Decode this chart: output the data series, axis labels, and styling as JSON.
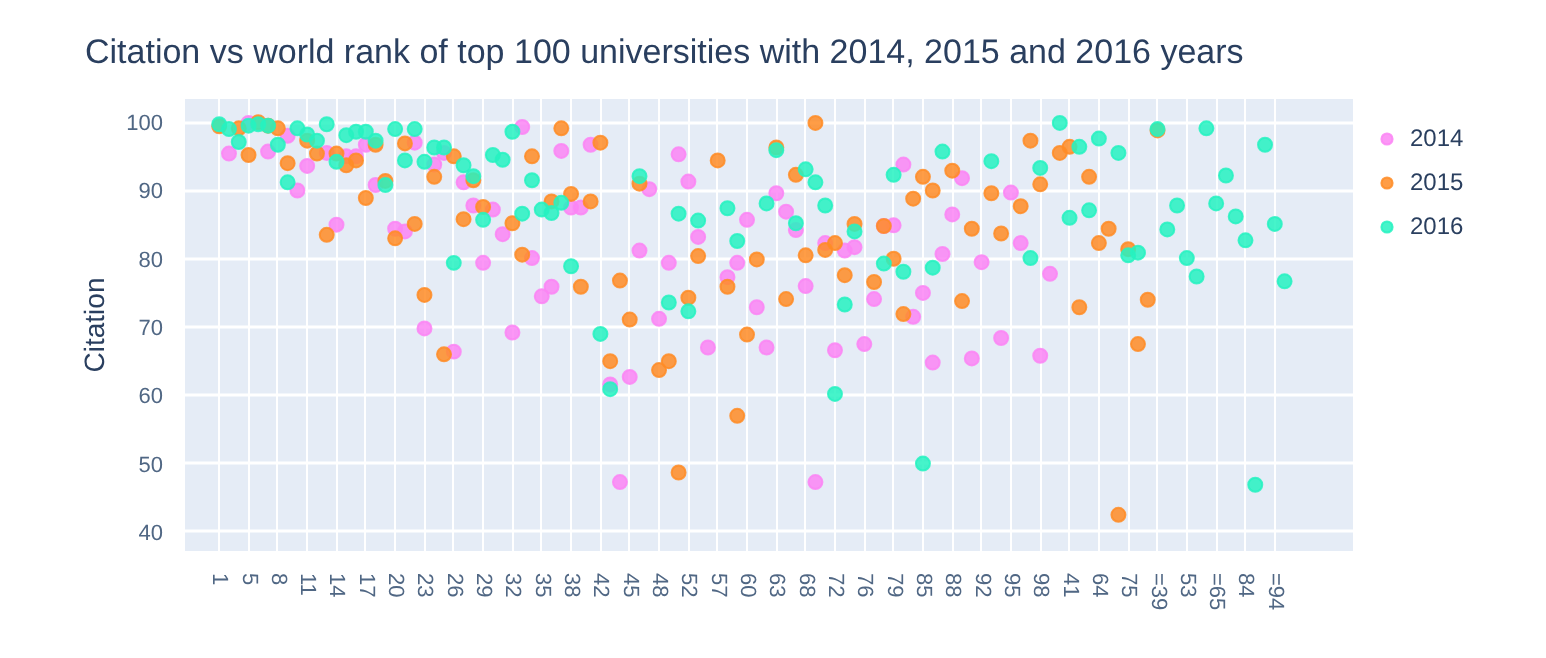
{
  "chart_data": {
    "type": "scatter",
    "title": "Citation vs world rank of top 100 universities with 2014, 2015 and 2016 years",
    "ylabel": "Citation",
    "categories": [
      "1",
      null,
      null,
      "5",
      null,
      null,
      "8",
      null,
      null,
      "11",
      null,
      null,
      "14",
      null,
      null,
      "17",
      null,
      null,
      "20",
      null,
      null,
      "23",
      null,
      null,
      "26",
      null,
      null,
      "29",
      null,
      null,
      "32",
      null,
      null,
      "35",
      null,
      null,
      "38",
      null,
      null,
      "42",
      null,
      null,
      "45",
      null,
      null,
      "48",
      null,
      null,
      "52",
      null,
      null,
      "57",
      null,
      null,
      "60",
      null,
      null,
      "63",
      null,
      null,
      "68",
      null,
      null,
      "72",
      null,
      null,
      "76",
      null,
      null,
      "79",
      null,
      null,
      "85",
      null,
      null,
      "88",
      null,
      null,
      "92",
      null,
      null,
      "95",
      null,
      null,
      "98",
      null,
      null,
      "41",
      null,
      null,
      "64",
      null,
      null,
      "75",
      null,
      null,
      "=39",
      null,
      null,
      "53",
      null,
      null,
      "=65",
      null,
      null,
      "84",
      null,
      null,
      "=94",
      null
    ],
    "series": [
      {
        "name": "2014",
        "color": "#fb85f4",
        "values": [
          null,
          95.4,
          null,
          99.9,
          null,
          95.7,
          null,
          98,
          90,
          93.6,
          null,
          95.5,
          85,
          95,
          95,
          96.7,
          90.8,
          null,
          84.4,
          84,
          97,
          69.8,
          93.8,
          95.5,
          66.4,
          91.2,
          87.8,
          79.4,
          87.2,
          83.6,
          69.2,
          99.3,
          80.1,
          74.5,
          75.9,
          95.8,
          87.5,
          87.5,
          96.7,
          null,
          61.6,
          47.3,
          62.7,
          81.2,
          90.2,
          71.2,
          79.4,
          95.3,
          91.3,
          83.2,
          67,
          null,
          77.3,
          79.4,
          85.7,
          72.9,
          67,
          89.6,
          86.9,
          84.2,
          76,
          47.3,
          82.3,
          66.6,
          81.2,
          81.7,
          67.5,
          74.1,
          84.8,
          84.9,
          93.8,
          71.5,
          75,
          64.8,
          80.7,
          86.5,
          91.8,
          65.4,
          79.5,
          null,
          68.4,
          89.7,
          82.3,
          null,
          65.8,
          77.8,
          null,
          null,
          null,
          null,
          null,
          null,
          null,
          null,
          null,
          null,
          null,
          null,
          null,
          null,
          null,
          null,
          null,
          null,
          null,
          null,
          null,
          null,
          null,
          null
        ]
      },
      {
        "name": "2015",
        "color": "#ff8c26",
        "values": [
          99.4,
          null,
          99.1,
          95.2,
          100,
          99.5,
          99.1,
          94,
          null,
          97.3,
          95.4,
          83.5,
          95.4,
          93.7,
          94.4,
          88.9,
          96.7,
          91.4,
          83,
          96.9,
          85.1,
          74.7,
          92,
          66,
          95,
          85.8,
          91.5,
          87.6,
          null,
          null,
          85.2,
          80.6,
          95,
          null,
          88.4,
          99.1,
          89.5,
          75.9,
          88.4,
          97,
          65,
          76.8,
          71.1,
          91,
          null,
          63.7,
          65,
          48.7,
          74.3,
          80.4,
          null,
          94.4,
          75.9,
          57,
          68.9,
          79.9,
          null,
          96.3,
          74.1,
          92.3,
          80.5,
          99.9,
          81.3,
          82.3,
          77.6,
          85.1,
          null,
          76.6,
          84.8,
          80,
          71.9,
          88.8,
          92,
          90,
          null,
          92.9,
          73.8,
          84.4,
          null,
          89.6,
          83.7,
          null,
          87.7,
          97.3,
          90.9,
          null,
          95.5,
          96.4,
          72.9,
          92,
          82.3,
          84.4,
          42.5,
          81.4,
          67.5,
          74,
          98.8,
          null,
          null,
          null,
          null,
          null,
          null,
          null,
          null,
          null,
          null,
          null,
          null,
          null
        ]
      },
      {
        "name": "2016",
        "color": "#26f2c1",
        "values": [
          99.7,
          99,
          97.1,
          99.5,
          99.7,
          99.5,
          96.7,
          91.2,
          99.1,
          98.2,
          97.3,
          99.7,
          94.2,
          98.1,
          98.6,
          98.6,
          97.3,
          90.8,
          99,
          94.4,
          99,
          94.2,
          96.3,
          96.3,
          79.4,
          93.7,
          92.1,
          85.7,
          95.2,
          94.5,
          98.6,
          86.6,
          91.5,
          87.2,
          86.7,
          88.2,
          78.9,
          null,
          null,
          69,
          60.9,
          null,
          null,
          92.1,
          null,
          null,
          73.6,
          86.6,
          72.3,
          85.6,
          null,
          null,
          87.4,
          82.6,
          null,
          null,
          88.1,
          95.9,
          null,
          85.2,
          93.1,
          91.2,
          87.8,
          60.2,
          73.3,
          84,
          null,
          null,
          79.3,
          92.3,
          78.1,
          null,
          50,
          78.7,
          95.7,
          null,
          null,
          null,
          null,
          94.3,
          null,
          null,
          null,
          80.1,
          93.3,
          null,
          99.9,
          86,
          96.4,
          87.1,
          97.6,
          null,
          95.5,
          80.5,
          80.9,
          null,
          99,
          84.3,
          87.8,
          80.1,
          77.4,
          99.1,
          88.1,
          92.2,
          86.2,
          82.7,
          46.9,
          96.7,
          85.1,
          76.7
        ]
      }
    ],
    "ylim": [
      37.2,
      103.4
    ],
    "yticks": [
      40,
      50,
      60,
      70,
      80,
      90,
      100
    ],
    "grid": true,
    "legend": "top right",
    "marker": "circle"
  }
}
